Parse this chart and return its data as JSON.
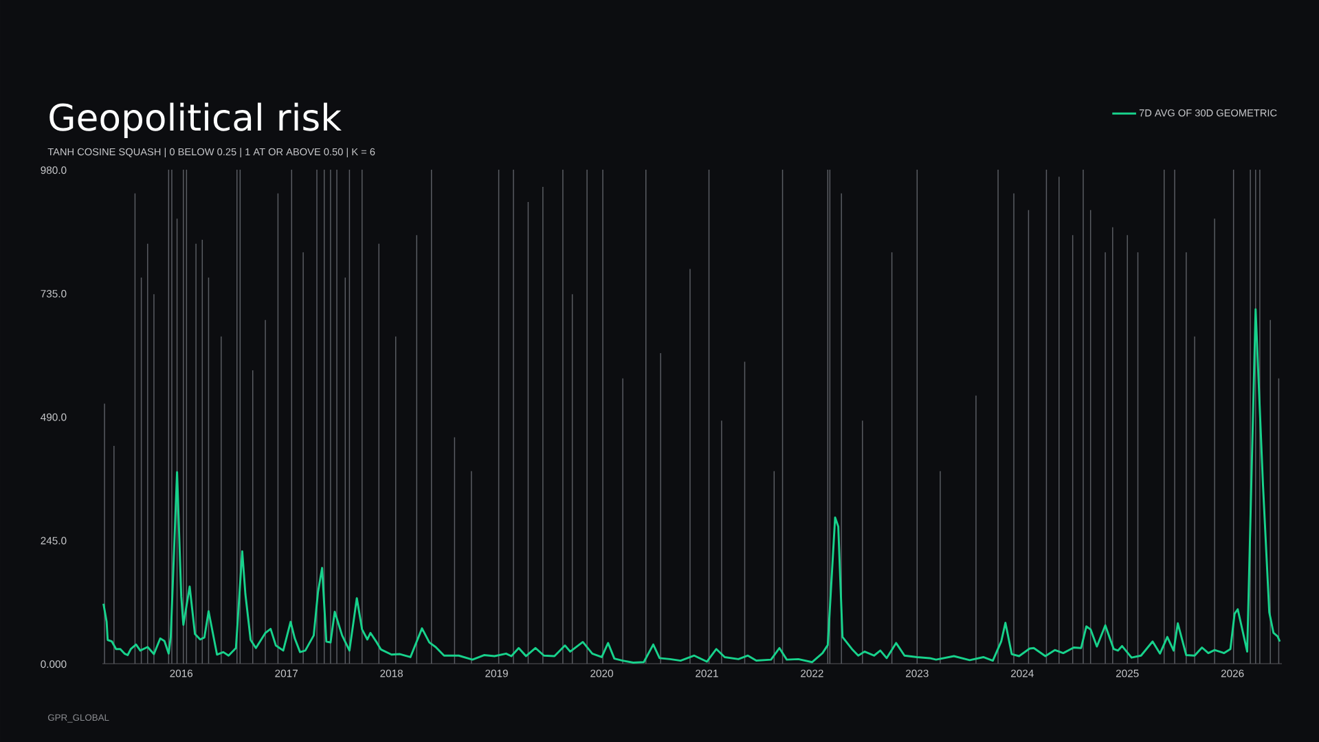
{
  "chart_data": {
    "type": "line",
    "title": "Geopolitical risk",
    "subtitle": "TANH COSINE SQUASH | 0 BELOW 0.25 | 1 AT OR ABOVE 0.50 | K = 6",
    "annotations": [
      "GPR_GLOBAL"
    ],
    "xlim": [
      2015.25,
      2026.47
    ],
    "xticks": [
      2016,
      2017,
      2018,
      2019,
      2020,
      2021,
      2022,
      2023,
      2024,
      2025,
      2026
    ],
    "ylim": [
      0,
      980
    ],
    "yticks": [
      {
        "value": 0,
        "label": "0.000"
      },
      {
        "value": 245,
        "label": "245.0"
      },
      {
        "value": 490,
        "label": "490.0"
      },
      {
        "value": 735,
        "label": "735.0"
      },
      {
        "value": 980,
        "label": "980.0"
      }
    ],
    "legend": "top right",
    "series": [
      {
        "type": "bar",
        "color": "#5b5e64",
        "x": [
          2015.27,
          2015.36,
          2015.56,
          2015.62,
          2015.68,
          2015.74,
          2015.88,
          2015.91,
          2015.96,
          2016.02,
          2016.05,
          2016.14,
          2016.2,
          2016.26,
          2016.38,
          2016.53,
          2016.56,
          2016.68,
          2016.8,
          2016.92,
          2017.05,
          2017.16,
          2017.29,
          2017.36,
          2017.42,
          2017.48,
          2017.56,
          2017.6,
          2017.72,
          2017.88,
          2018.04,
          2018.24,
          2018.38,
          2018.6,
          2018.76,
          2019.02,
          2019.16,
          2019.3,
          2019.44,
          2019.63,
          2019.72,
          2019.86,
          2020.01,
          2020.2,
          2020.42,
          2020.56,
          2020.84,
          2021.02,
          2021.14,
          2021.36,
          2021.64,
          2021.72,
          2022.15,
          2022.17,
          2022.28,
          2022.48,
          2022.76,
          2023.0,
          2023.22,
          2023.56,
          2023.77,
          2023.92,
          2024.06,
          2024.23,
          2024.35,
          2024.48,
          2024.58,
          2024.65,
          2024.79,
          2024.86,
          2025.0,
          2025.1,
          2025.35,
          2025.45,
          2025.56,
          2025.64,
          2025.83,
          2026.01,
          2026.17,
          2026.22,
          2026.26,
          2026.36,
          2026.44
        ],
        "values": [
          516,
          432,
          933,
          766,
          833,
          733,
          980,
          980,
          883,
          980,
          980,
          833,
          841,
          766,
          649,
          980,
          980,
          582,
          682,
          933,
          980,
          816,
          980,
          980,
          980,
          980,
          766,
          980,
          980,
          833,
          649,
          850,
          980,
          449,
          382,
          980,
          980,
          916,
          946,
          980,
          733,
          980,
          980,
          566,
          980,
          616,
          783,
          980,
          482,
          599,
          382,
          980,
          980,
          980,
          933,
          482,
          816,
          980,
          382,
          532,
          980,
          933,
          900,
          980,
          966,
          850,
          980,
          900,
          816,
          866,
          850,
          816,
          980,
          980,
          816,
          649,
          883,
          980,
          980,
          980,
          980,
          682,
          566
        ]
      },
      {
        "name": "7D AVG OF 30D GEOMETRIC",
        "color": "#18d28c",
        "x": [
          2015.26,
          2015.29,
          2015.3,
          2015.34,
          2015.38,
          2015.42,
          2015.46,
          2015.49,
          2015.52,
          2015.57,
          2015.61,
          2015.68,
          2015.74,
          2015.8,
          2015.84,
          2015.88,
          2015.9,
          2015.96,
          2016.0,
          2016.02,
          2016.08,
          2016.13,
          2016.18,
          2016.22,
          2016.26,
          2016.34,
          2016.4,
          2016.45,
          2016.52,
          2016.58,
          2016.61,
          2016.66,
          2016.71,
          2016.8,
          2016.85,
          2016.9,
          2016.97,
          2017.04,
          2017.08,
          2017.13,
          2017.18,
          2017.26,
          2017.3,
          2017.34,
          2017.38,
          2017.42,
          2017.46,
          2017.53,
          2017.6,
          2017.67,
          2017.72,
          2017.77,
          2017.8,
          2017.86,
          2017.9,
          2018.0,
          2018.08,
          2018.18,
          2018.29,
          2018.36,
          2018.42,
          2018.5,
          2018.64,
          2018.77,
          2018.88,
          2018.98,
          2019.09,
          2019.14,
          2019.21,
          2019.28,
          2019.37,
          2019.45,
          2019.55,
          2019.65,
          2019.7,
          2019.82,
          2019.91,
          2020.0,
          2020.06,
          2020.12,
          2020.2,
          2020.3,
          2020.4,
          2020.49,
          2020.55,
          2020.65,
          2020.75,
          2020.88,
          2021.0,
          2021.09,
          2021.17,
          2021.3,
          2021.39,
          2021.47,
          2021.61,
          2021.69,
          2021.76,
          2021.87,
          2022.0,
          2022.1,
          2022.15,
          2022.22,
          2022.25,
          2022.29,
          2022.38,
          2022.44,
          2022.5,
          2022.59,
          2022.65,
          2022.71,
          2022.8,
          2022.88,
          2023.0,
          2023.12,
          2023.18,
          2023.35,
          2023.5,
          2023.63,
          2023.72,
          2023.8,
          2023.84,
          2023.9,
          2023.97,
          2024.07,
          2024.11,
          2024.22,
          2024.31,
          2024.39,
          2024.49,
          2024.56,
          2024.61,
          2024.65,
          2024.71,
          2024.79,
          2024.87,
          2024.91,
          2024.95,
          2025.04,
          2025.13,
          2025.24,
          2025.31,
          2025.38,
          2025.44,
          2025.48,
          2025.56,
          2025.64,
          2025.71,
          2025.77,
          2025.83,
          2025.92,
          2025.98,
          2026.02,
          2026.05,
          2026.14,
          2026.22,
          2026.29,
          2026.35,
          2026.39,
          2026.43,
          2026.45
        ],
        "values": [
          119,
          83,
          47,
          44,
          29,
          29,
          20,
          17,
          29,
          38,
          26,
          33,
          19,
          50,
          45,
          20,
          53,
          380,
          133,
          77,
          153,
          59,
          48,
          52,
          104,
          18,
          23,
          16,
          31,
          223,
          138,
          47,
          31,
          61,
          69,
          36,
          26,
          83,
          50,
          23,
          26,
          56,
          141,
          190,
          44,
          42,
          103,
          56,
          26,
          130,
          68,
          48,
          61,
          42,
          28,
          18,
          19,
          13,
          70,
          42,
          33,
          16,
          16,
          8,
          17,
          15,
          20,
          15,
          31,
          15,
          31,
          16,
          15,
          36,
          24,
          43,
          20,
          13,
          41,
          10,
          6,
          2,
          3,
          38,
          11,
          9,
          6,
          16,
          4,
          29,
          13,
          9,
          16,
          6,
          8,
          31,
          8,
          9,
          3,
          21,
          37,
          290,
          272,
          53,
          29,
          16,
          24,
          16,
          26,
          11,
          41,
          16,
          13,
          11,
          8,
          15,
          7,
          13,
          6,
          44,
          81,
          19,
          15,
          30,
          31,
          15,
          27,
          21,
          32,
          31,
          74,
          68,
          34,
          76,
          29,
          26,
          35,
          12,
          16,
          44,
          20,
          53,
          26,
          80,
          17,
          16,
          32,
          21,
          27,
          21,
          29,
          99,
          108,
          24,
          703,
          355,
          102,
          61,
          54,
          44
        ]
      }
    ]
  }
}
